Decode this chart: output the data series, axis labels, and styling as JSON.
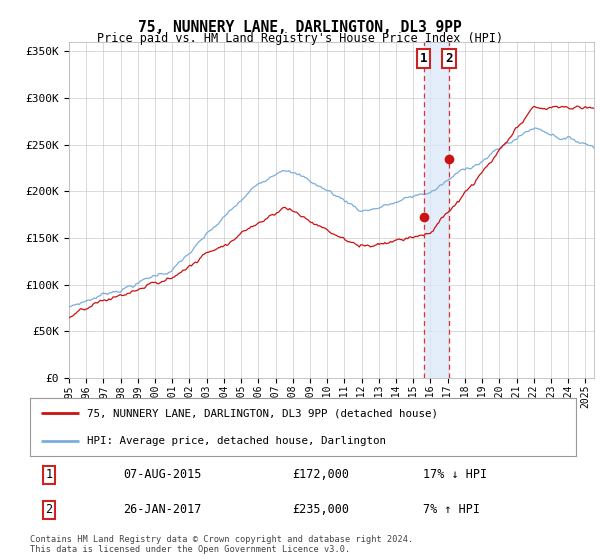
{
  "title": "75, NUNNERY LANE, DARLINGTON, DL3 9PP",
  "subtitle": "Price paid vs. HM Land Registry's House Price Index (HPI)",
  "ylabel_ticks": [
    "£0",
    "£50K",
    "£100K",
    "£150K",
    "£200K",
    "£250K",
    "£300K",
    "£350K"
  ],
  "ytick_values": [
    0,
    50000,
    100000,
    150000,
    200000,
    250000,
    300000,
    350000
  ],
  "ylim": [
    0,
    360000
  ],
  "xlim_start": 1995.0,
  "xlim_end": 2025.5,
  "hpi_color": "#7aaddc",
  "price_color": "#cc1111",
  "transaction1_date": 2015.6,
  "transaction1_price": 172000,
  "transaction2_date": 2017.08,
  "transaction2_price": 235000,
  "legend1_label": "75, NUNNERY LANE, DARLINGTON, DL3 9PP (detached house)",
  "legend2_label": "HPI: Average price, detached house, Darlington",
  "table_row1_num": "1",
  "table_row1_date": "07-AUG-2015",
  "table_row1_price": "£172,000",
  "table_row1_hpi": "17% ↓ HPI",
  "table_row2_num": "2",
  "table_row2_date": "26-JAN-2017",
  "table_row2_price": "£235,000",
  "table_row2_hpi": "7% ↑ HPI",
  "footer": "Contains HM Land Registry data © Crown copyright and database right 2024.\nThis data is licensed under the Open Government Licence v3.0.",
  "background_color": "#ffffff",
  "grid_color": "#cccccc"
}
